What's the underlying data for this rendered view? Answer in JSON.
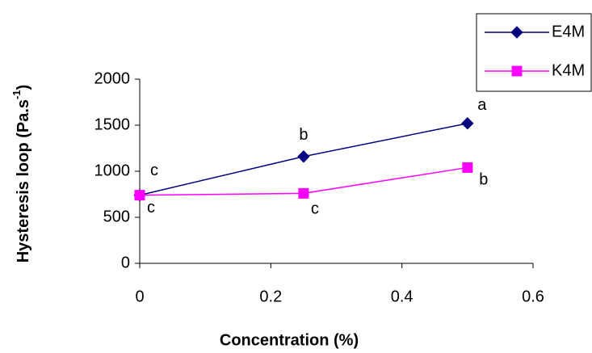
{
  "chart_data": {
    "type": "line",
    "ylabel": "Hysteresis loop (Pa.s",
    "ylabel_sup": "-1",
    "ylabel_end": ")",
    "xlabel": "Concentration (%)",
    "x": [
      0,
      0.25,
      0.5
    ],
    "series": [
      {
        "name": "E4M",
        "color": "#000080",
        "marker": "diamond",
        "values": [
          740,
          1160,
          1520
        ],
        "point_labels": [
          "c",
          "b",
          "a"
        ]
      },
      {
        "name": "K4M",
        "color": "#ff00ff",
        "marker": "square",
        "values": [
          740,
          760,
          1040
        ],
        "point_labels": [
          "c",
          "c",
          "b"
        ]
      }
    ],
    "xlim": [
      0,
      0.6
    ],
    "xticks": [
      0,
      0.2,
      0.4,
      0.6
    ],
    "ylim": [
      0,
      2000
    ],
    "yticks": [
      0,
      500,
      1000,
      1500,
      2000
    ],
    "grid": false,
    "legend": "top-right"
  }
}
